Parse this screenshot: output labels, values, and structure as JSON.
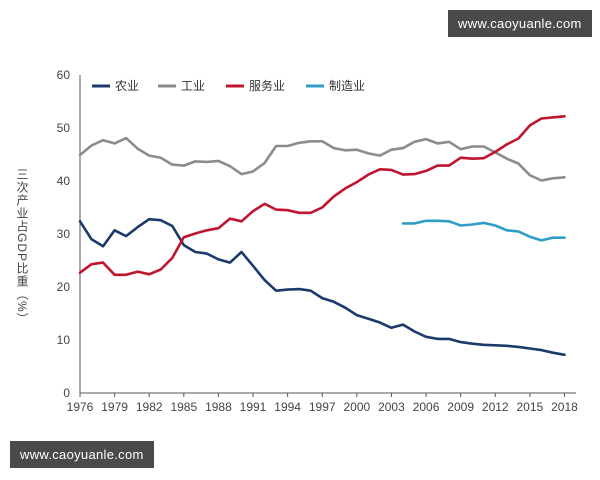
{
  "watermarks": {
    "top": "www.caoyuanle.com",
    "bottom": "www.caoyuanle.com"
  },
  "chart_data": {
    "type": "line",
    "title": "",
    "xlabel": "",
    "ylabel": "三次产业占GDP比重（%）",
    "xlim": [
      1976,
      2019
    ],
    "ylim": [
      0,
      60
    ],
    "yticks": [
      0,
      10,
      20,
      30,
      40,
      50,
      60
    ],
    "xticks": [
      1976,
      1979,
      1982,
      1985,
      1988,
      1991,
      1994,
      1997,
      2000,
      2003,
      2006,
      2009,
      2012,
      2015,
      2018
    ],
    "legend_position": "top-left",
    "grid": false,
    "series": [
      {
        "name": "农业",
        "color": "#1b3a6b",
        "x": [
          1976,
          1977,
          1978,
          1979,
          1980,
          1981,
          1982,
          1983,
          1984,
          1985,
          1986,
          1987,
          1988,
          1989,
          1990,
          1991,
          1992,
          1993,
          1994,
          1995,
          1996,
          1997,
          1998,
          1999,
          2000,
          2001,
          2002,
          2003,
          2004,
          2005,
          2006,
          2007,
          2008,
          2009,
          2010,
          2011,
          2012,
          2013,
          2014,
          2015,
          2016,
          2017,
          2018
        ],
        "values": [
          32.4,
          29.0,
          27.7,
          30.7,
          29.6,
          31.3,
          32.8,
          32.6,
          31.5,
          27.9,
          26.6,
          26.3,
          25.2,
          24.6,
          26.6,
          24.0,
          21.3,
          19.3,
          19.5,
          19.6,
          19.3,
          17.9,
          17.2,
          16.1,
          14.7,
          14.0,
          13.3,
          12.3,
          12.9,
          11.6,
          10.6,
          10.2,
          10.2,
          9.6,
          9.3,
          9.1,
          9.0,
          8.9,
          8.7,
          8.4,
          8.1,
          7.6,
          7.2
        ]
      },
      {
        "name": "工业",
        "color": "#8c8c8c",
        "x": [
          1976,
          1977,
          1978,
          1979,
          1980,
          1981,
          1982,
          1983,
          1984,
          1985,
          1986,
          1987,
          1988,
          1989,
          1990,
          1991,
          1992,
          1993,
          1994,
          1995,
          1996,
          1997,
          1998,
          1999,
          2000,
          2001,
          2002,
          2003,
          2004,
          2005,
          2006,
          2007,
          2008,
          2009,
          2010,
          2011,
          2012,
          2013,
          2014,
          2015,
          2016,
          2017,
          2018
        ],
        "values": [
          44.9,
          46.7,
          47.7,
          47.1,
          48.1,
          46.1,
          44.8,
          44.4,
          43.1,
          42.9,
          43.7,
          43.6,
          43.8,
          42.8,
          41.3,
          41.8,
          43.4,
          46.6,
          46.6,
          47.2,
          47.5,
          47.5,
          46.2,
          45.8,
          45.9,
          45.2,
          44.8,
          45.9,
          46.2,
          47.4,
          47.9,
          47.1,
          47.4,
          46.0,
          46.5,
          46.5,
          45.4,
          44.2,
          43.3,
          41.1,
          40.1,
          40.5,
          40.7
        ]
      },
      {
        "name": "服务业",
        "color": "#c0152f",
        "x": [
          1976,
          1977,
          1978,
          1979,
          1980,
          1981,
          1982,
          1983,
          1984,
          1985,
          1986,
          1987,
          1988,
          1989,
          1990,
          1991,
          1992,
          1993,
          1994,
          1995,
          1996,
          1997,
          1998,
          1999,
          2000,
          2001,
          2002,
          2003,
          2004,
          2005,
          2006,
          2007,
          2008,
          2009,
          2010,
          2011,
          2012,
          2013,
          2014,
          2015,
          2016,
          2017,
          2018
        ],
        "values": [
          22.7,
          24.3,
          24.6,
          22.3,
          22.3,
          22.9,
          22.4,
          23.3,
          25.5,
          29.4,
          30.1,
          30.7,
          31.1,
          32.9,
          32.4,
          34.3,
          35.7,
          34.6,
          34.5,
          34.0,
          34.0,
          35.0,
          37.1,
          38.6,
          39.8,
          41.2,
          42.2,
          42.1,
          41.2,
          41.3,
          41.9,
          42.9,
          42.9,
          44.4,
          44.2,
          44.3,
          45.5,
          46.9,
          48.0,
          50.5,
          51.8,
          52.0,
          52.2
        ]
      },
      {
        "name": "制造业",
        "color": "#2e9ec7",
        "x": [
          2004,
          2005,
          2006,
          2007,
          2008,
          2009,
          2010,
          2011,
          2012,
          2013,
          2014,
          2015,
          2016,
          2017,
          2018
        ],
        "values": [
          32.0,
          32.0,
          32.5,
          32.5,
          32.4,
          31.6,
          31.8,
          32.1,
          31.6,
          30.7,
          30.5,
          29.5,
          28.8,
          29.3,
          29.3
        ]
      }
    ]
  }
}
